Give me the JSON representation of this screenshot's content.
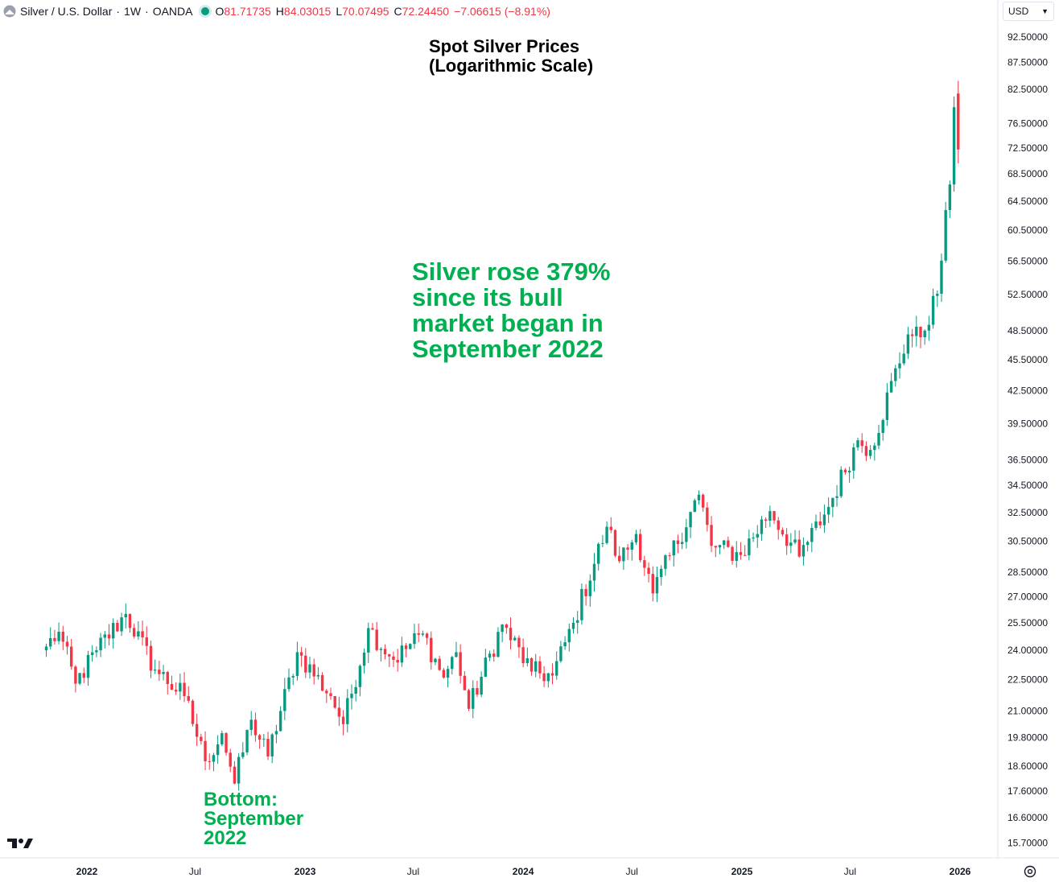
{
  "header": {
    "symbol": "Silver / U.S. Dollar",
    "interval": "1W",
    "source": "OANDA",
    "sep": "·",
    "open_label": "O",
    "open": "81.71735",
    "high_label": "H",
    "high": "84.03015",
    "low_label": "L",
    "low": "70.07495",
    "close_label": "C",
    "close": "72.24450",
    "change": "−7.06615 (−8.91%)",
    "symbol_icon": "silver-coin-icon"
  },
  "currency": {
    "label": "USD",
    "icon": "chevron-down-icon"
  },
  "colors": {
    "up": "#089981",
    "down": "#f23645",
    "annotation": "#00b050",
    "axis_text": "#131722"
  },
  "chart_data": {
    "type": "candlestick",
    "title": [
      "Spot Silver Prices",
      "(Logarithmic Scale)"
    ],
    "y_scale": "log",
    "ylim": [
      15.2,
      95.2
    ],
    "y_ticks": [
      "92.50000",
      "87.50000",
      "82.50000",
      "76.50000",
      "72.50000",
      "68.50000",
      "64.50000",
      "60.50000",
      "56.50000",
      "52.50000",
      "48.50000",
      "45.50000",
      "42.50000",
      "39.50000",
      "36.50000",
      "34.50000",
      "32.50000",
      "30.50000",
      "28.50000",
      "27.00000",
      "25.50000",
      "24.00000",
      "22.50000",
      "21.00000",
      "19.80000",
      "18.60000",
      "17.60000",
      "16.60000",
      "15.70000"
    ],
    "x_ticks": [
      {
        "label": "2022",
        "date": "2022-01-01",
        "major": true
      },
      {
        "label": "Jul",
        "date": "2022-07-01",
        "major": false
      },
      {
        "label": "2023",
        "date": "2023-01-01",
        "major": true
      },
      {
        "label": "Jul",
        "date": "2023-07-01",
        "major": false
      },
      {
        "label": "2024",
        "date": "2024-01-01",
        "major": true
      },
      {
        "label": "Jul",
        "date": "2024-07-01",
        "major": false
      },
      {
        "label": "2025",
        "date": "2025-01-01",
        "major": true
      },
      {
        "label": "Jul",
        "date": "2025-07-01",
        "major": false
      },
      {
        "label": "2026",
        "date": "2026-01-01",
        "major": true
      }
    ],
    "anchor_closes": [
      [
        "2021-10-25",
        24.2
      ],
      [
        "2021-11-15",
        25.0
      ],
      [
        "2021-12-13",
        22.3
      ],
      [
        "2022-01-17",
        24.0
      ],
      [
        "2022-03-07",
        26.0
      ],
      [
        "2022-04-25",
        23.0
      ],
      [
        "2022-06-13",
        21.7
      ],
      [
        "2022-07-18",
        18.8
      ],
      [
        "2022-08-15",
        20.0
      ],
      [
        "2022-09-05",
        17.9
      ],
      [
        "2022-10-03",
        20.6
      ],
      [
        "2022-10-31",
        19.0
      ],
      [
        "2022-12-19",
        23.9
      ],
      [
        "2023-02-13",
        21.7
      ],
      [
        "2023-03-06",
        20.4
      ],
      [
        "2023-04-17",
        25.2
      ],
      [
        "2023-05-29",
        23.5
      ],
      [
        "2023-07-17",
        24.9
      ],
      [
        "2023-08-21",
        22.6
      ],
      [
        "2023-09-11",
        23.9
      ],
      [
        "2023-10-02",
        21.1
      ],
      [
        "2023-11-27",
        25.4
      ],
      [
        "2024-01-15",
        22.9
      ],
      [
        "2024-02-19",
        22.7
      ],
      [
        "2024-03-25",
        25.5
      ],
      [
        "2024-05-20",
        31.5
      ],
      [
        "2024-06-10",
        29.2
      ],
      [
        "2024-07-08",
        31.0
      ],
      [
        "2024-08-05",
        27.2
      ],
      [
        "2024-10-21",
        33.8
      ],
      [
        "2024-11-11",
        30.2
      ],
      [
        "2024-12-30",
        29.6
      ],
      [
        "2025-02-17",
        32.6
      ],
      [
        "2025-04-07",
        29.5
      ],
      [
        "2025-05-26",
        32.9
      ],
      [
        "2025-07-14",
        38.1
      ],
      [
        "2025-08-04",
        37.3
      ],
      [
        "2025-10-06",
        48.1
      ],
      [
        "2025-10-27",
        47.8
      ],
      [
        "2025-11-24",
        52.6
      ],
      [
        "2025-12-15",
        66.9
      ],
      [
        "2025-12-22",
        79.3
      ],
      [
        "2025-12-29",
        72.24
      ]
    ],
    "last_candle": {
      "date": "2025-12-29",
      "open": 81.71735,
      "high": 84.03015,
      "low": 70.07495,
      "close": 72.2445
    },
    "annotations": {
      "main": [
        "Silver rose 379%",
        "since its bull",
        "market began in",
        "September 2022"
      ],
      "bottom": [
        "Bottom:",
        "September",
        "2022"
      ]
    }
  }
}
